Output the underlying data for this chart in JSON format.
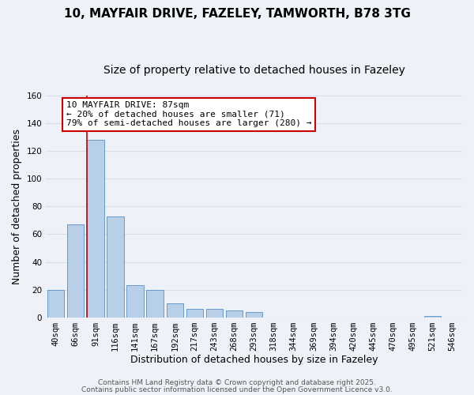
{
  "title": "10, MAYFAIR DRIVE, FAZELEY, TAMWORTH, B78 3TG",
  "subtitle": "Size of property relative to detached houses in Fazeley",
  "xlabel": "Distribution of detached houses by size in Fazeley",
  "ylabel": "Number of detached properties",
  "bar_labels": [
    "40sqm",
    "66sqm",
    "91sqm",
    "116sqm",
    "141sqm",
    "167sqm",
    "192sqm",
    "217sqm",
    "243sqm",
    "268sqm",
    "293sqm",
    "318sqm",
    "344sqm",
    "369sqm",
    "394sqm",
    "420sqm",
    "445sqm",
    "470sqm",
    "495sqm",
    "521sqm",
    "546sqm"
  ],
  "bar_values": [
    20,
    67,
    128,
    73,
    23,
    20,
    10,
    6,
    6,
    5,
    4,
    0,
    0,
    0,
    0,
    0,
    0,
    0,
    0,
    1,
    0
  ],
  "bar_color": "#b8cfe8",
  "bar_edge_color": "#6699cc",
  "highlight_color": "#cc0000",
  "highlight_index": 2,
  "ylim": [
    0,
    160
  ],
  "yticks": [
    0,
    20,
    40,
    60,
    80,
    100,
    120,
    140,
    160
  ],
  "annotation_title": "10 MAYFAIR DRIVE: 87sqm",
  "annotation_line1": "← 20% of detached houses are smaller (71)",
  "annotation_line2": "79% of semi-detached houses are larger (280) →",
  "annotation_box_color": "#ffffff",
  "annotation_border_color": "#cc0000",
  "footer_line1": "Contains HM Land Registry data © Crown copyright and database right 2025.",
  "footer_line2": "Contains public sector information licensed under the Open Government Licence v3.0.",
  "bg_color": "#eef2f8",
  "grid_color": "#d8dde8",
  "title_fontsize": 11,
  "subtitle_fontsize": 10,
  "axis_label_fontsize": 9,
  "tick_fontsize": 7.5,
  "footer_fontsize": 6.5,
  "annotation_fontsize": 8
}
